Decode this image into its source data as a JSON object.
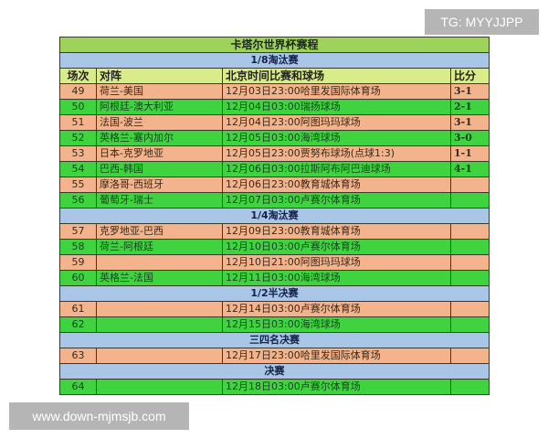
{
  "title": "卡塔尔世界杯赛程",
  "columns": [
    "场次",
    "对阵",
    "北京时间比赛和球场",
    "比分"
  ],
  "colors": {
    "title": "#9fd25a",
    "stage": "#a9c6e6",
    "header": "#d9ec8a",
    "row_orange": "#f3b38c",
    "row_green": "#3fd43f"
  },
  "stages": [
    {
      "name": "1/8淘汰赛",
      "rows": [
        {
          "no": "49",
          "match": "荷兰-美国",
          "time": "12月03日23:00哈里发国际体育场",
          "score": "3-1"
        },
        {
          "no": "50",
          "match": "阿根廷-澳大利亚",
          "time": "12月04日03:00瑞扬球场",
          "score": "2-1"
        },
        {
          "no": "51",
          "match": "法国-波兰",
          "time": "12月04日23:00阿图玛玛球场",
          "score": "3-1"
        },
        {
          "no": "52",
          "match": "英格兰-塞内加尔",
          "time": "12月05日03:00海湾球场",
          "score": "3-0"
        },
        {
          "no": "53",
          "match": "日本-克罗地亚",
          "time": "12月05日23:00贾努布球场(点球1:3)",
          "score": "1-1"
        },
        {
          "no": "54",
          "match": "巴西-韩国",
          "time": "12月06日03:00拉斯阿布阿巴迪球场",
          "score": "4-1"
        },
        {
          "no": "55",
          "match": "摩洛哥-西班牙",
          "time": "12月06日23:00教育城体育场",
          "score": ""
        },
        {
          "no": "56",
          "match": "葡萄牙-瑞士",
          "time": "12月07日03:00卢赛尔体育场",
          "score": ""
        }
      ]
    },
    {
      "name": "1/4淘汰赛",
      "rows": [
        {
          "no": "57",
          "match": "克罗地亚-巴西",
          "time": "12月09日23:00教育城体育场",
          "score": ""
        },
        {
          "no": "58",
          "match": "荷兰-阿根廷",
          "time": "12月10日03:00卢赛尔体育场",
          "score": ""
        },
        {
          "no": "59",
          "match": "",
          "time": "12月10日21:00阿图玛玛球场",
          "score": ""
        },
        {
          "no": "60",
          "match": "英格兰-法国",
          "time": "12月11日03:00海湾球场",
          "score": ""
        }
      ]
    },
    {
      "name": "1/2半决赛",
      "rows": [
        {
          "no": "61",
          "match": "",
          "time": "12月14日03:00卢赛尔体育场",
          "score": ""
        },
        {
          "no": "62",
          "match": "",
          "time": "12月15日03:00海湾球场",
          "score": ""
        }
      ]
    },
    {
      "name": "三四名决赛",
      "rows": [
        {
          "no": "63",
          "match": "",
          "time": "12月17日23:00哈里发国际体育场",
          "score": ""
        }
      ]
    },
    {
      "name": "决赛",
      "rows": [
        {
          "no": "64",
          "match": "",
          "time": "12月18日03:00卢赛尔体育场",
          "score": ""
        }
      ]
    }
  ],
  "watermarks": {
    "top": "TG: MYYJJPP",
    "bottom": "www.down-mjmsjb.com"
  }
}
